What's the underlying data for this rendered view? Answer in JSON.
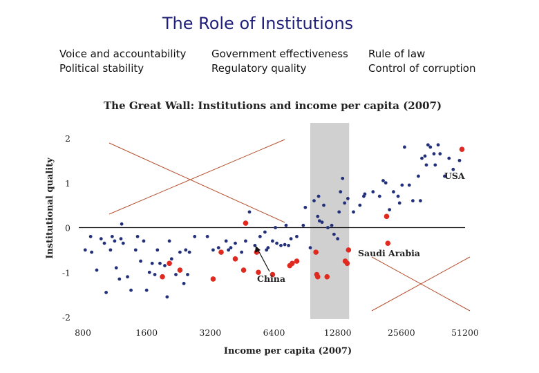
{
  "slide": {
    "title": "The Role of Institutions",
    "indicators": [
      [
        "Voice and accountability",
        "Political stability"
      ],
      [
        "Government effectiveness",
        "Regulatory quality"
      ],
      [
        "Rule of law",
        "Control of corruption"
      ]
    ]
  },
  "chart_data": {
    "type": "scatter",
    "title": "The Great Wall: Institutions and income per capita (2007)",
    "xlabel": "Income per capita (2007)",
    "ylabel": "Institutional quality",
    "x_scale": "log2",
    "xlim": [
      800,
      51200
    ],
    "ylim": [
      -2,
      2
    ],
    "x_ticks": [
      "800",
      "1600",
      "3200",
      "6400",
      "12800",
      "25600",
      "51200"
    ],
    "y_ticks": [
      "2",
      "1",
      "0",
      "-1",
      "-2"
    ],
    "shaded_band_x": [
      9500,
      14500
    ],
    "annotations": [
      "USA",
      "Saudi Arabia",
      "China"
    ],
    "colors": {
      "blue": "#22307a",
      "red": "#e02a20",
      "band": "#d0d0d0",
      "cross": "#b5502e"
    },
    "series": [
      {
        "color": "blue",
        "points": [
          [
            820,
            -0.5
          ],
          [
            870,
            -0.2
          ],
          [
            880,
            -0.55
          ],
          [
            930,
            -0.95
          ],
          [
            975,
            -0.25
          ],
          [
            1010,
            -0.35
          ],
          [
            1030,
            -1.45
          ],
          [
            1080,
            -0.5
          ],
          [
            1100,
            -0.2
          ],
          [
            1130,
            -0.3
          ],
          [
            1150,
            -0.9
          ],
          [
            1190,
            -1.15
          ],
          [
            1210,
            -0.25
          ],
          [
            1220,
            0.08
          ],
          [
            1240,
            -0.35
          ],
          [
            1300,
            -1.1
          ],
          [
            1350,
            -1.4
          ],
          [
            1420,
            -0.5
          ],
          [
            1450,
            -0.2
          ],
          [
            1500,
            -0.75
          ],
          [
            1550,
            -0.3
          ],
          [
            1600,
            -1.4
          ],
          [
            1650,
            -1.0
          ],
          [
            1700,
            -0.8
          ],
          [
            1750,
            -1.05
          ],
          [
            1800,
            -0.5
          ],
          [
            1850,
            -0.8
          ],
          [
            1900,
            -1.1
          ],
          [
            1950,
            -0.85
          ],
          [
            2000,
            -1.55
          ],
          [
            2050,
            -0.3
          ],
          [
            2100,
            -0.7
          ],
          [
            2200,
            -1.05
          ],
          [
            2300,
            -0.55
          ],
          [
            2400,
            -1.25
          ],
          [
            2450,
            -0.5
          ],
          [
            2500,
            -1.05
          ],
          [
            2550,
            -0.55
          ],
          [
            2700,
            -0.2
          ],
          [
            3100,
            -0.2
          ],
          [
            3300,
            -0.5
          ],
          [
            3500,
            -0.45
          ],
          [
            3800,
            -0.3
          ],
          [
            3900,
            -0.5
          ],
          [
            4000,
            -0.45
          ],
          [
            4200,
            -0.35
          ],
          [
            4500,
            -0.55
          ],
          [
            4700,
            -0.3
          ],
          [
            4900,
            0.35
          ],
          [
            5200,
            -0.4
          ],
          [
            5500,
            -0.2
          ],
          [
            5800,
            -0.1
          ],
          [
            5900,
            -0.5
          ],
          [
            6000,
            -0.45
          ],
          [
            6300,
            -0.3
          ],
          [
            6500,
            0.0
          ],
          [
            6600,
            -0.35
          ],
          [
            6900,
            -0.4
          ],
          [
            7200,
            -0.38
          ],
          [
            7300,
            0.05
          ],
          [
            7500,
            -0.4
          ],
          [
            7700,
            -0.25
          ],
          [
            8200,
            -0.2
          ],
          [
            8800,
            0.05
          ],
          [
            9000,
            0.45
          ],
          [
            9500,
            -0.45
          ],
          [
            9900,
            0.6
          ],
          [
            10300,
            0.25
          ],
          [
            10400,
            0.7
          ],
          [
            10500,
            0.15
          ],
          [
            10800,
            0.12
          ],
          [
            11000,
            0.5
          ],
          [
            11500,
            0.0
          ],
          [
            12000,
            0.05
          ],
          [
            12300,
            -0.15
          ],
          [
            12800,
            -0.25
          ],
          [
            13000,
            0.35
          ],
          [
            13200,
            0.8
          ],
          [
            13500,
            1.1
          ],
          [
            13800,
            0.55
          ],
          [
            14300,
            0.65
          ],
          [
            15200,
            0.35
          ],
          [
            16300,
            0.5
          ],
          [
            17000,
            0.7
          ],
          [
            17200,
            0.75
          ],
          [
            18800,
            0.8
          ],
          [
            20200,
            0.7
          ],
          [
            21000,
            1.05
          ],
          [
            21600,
            1.0
          ],
          [
            22500,
            0.4
          ],
          [
            23500,
            0.8
          ],
          [
            24700,
            0.7
          ],
          [
            25100,
            0.55
          ],
          [
            25800,
            0.95
          ],
          [
            26500,
            1.8
          ],
          [
            27900,
            0.95
          ],
          [
            29000,
            0.6
          ],
          [
            30800,
            1.15
          ],
          [
            31500,
            0.6
          ],
          [
            32000,
            1.55
          ],
          [
            33100,
            1.6
          ],
          [
            33600,
            1.4
          ],
          [
            34200,
            1.85
          ],
          [
            35100,
            1.8
          ],
          [
            36500,
            1.65
          ],
          [
            37000,
            1.4
          ],
          [
            38200,
            1.85
          ],
          [
            39000,
            1.65
          ],
          [
            41000,
            1.15
          ],
          [
            43000,
            1.55
          ],
          [
            45000,
            1.3
          ],
          [
            48200,
            1.5
          ]
        ]
      },
      {
        "color": "red",
        "points": [
          [
            1900,
            -1.1
          ],
          [
            2050,
            -0.8
          ],
          [
            2300,
            -0.95
          ],
          [
            3300,
            -1.15
          ],
          [
            3600,
            -0.55
          ],
          [
            4200,
            -0.7
          ],
          [
            4600,
            -0.95
          ],
          [
            4700,
            0.1
          ],
          [
            5300,
            -0.55
          ],
          [
            5400,
            -1.0
          ],
          [
            6300,
            -1.05
          ],
          [
            7600,
            -0.85
          ],
          [
            7800,
            -0.8
          ],
          [
            8200,
            -0.75
          ],
          [
            10100,
            -0.55
          ],
          [
            10200,
            -1.05
          ],
          [
            10300,
            -1.1
          ],
          [
            11400,
            -1.1
          ],
          [
            13900,
            -0.75
          ],
          [
            14200,
            -0.8
          ],
          [
            14400,
            -0.5
          ],
          [
            21800,
            0.25
          ],
          [
            22100,
            -0.35
          ],
          [
            49500,
            1.75
          ]
        ]
      }
    ]
  }
}
